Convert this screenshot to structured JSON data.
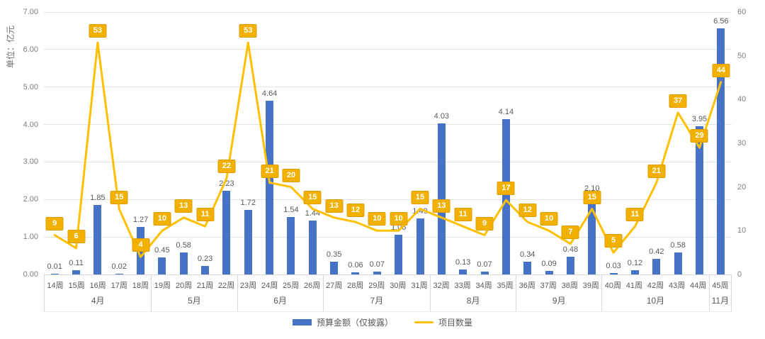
{
  "chart_data": {
    "type": "bar+line",
    "title": "",
    "categories": [
      "14周",
      "15周",
      "16周",
      "17周",
      "18周",
      "19周",
      "20周",
      "21周",
      "22周",
      "23周",
      "24周",
      "25周",
      "26周",
      "27周",
      "28周",
      "29周",
      "30周",
      "31周",
      "32周",
      "33周",
      "34周",
      "35周",
      "36周",
      "37周",
      "38周",
      "39周",
      "40周",
      "41周",
      "42周",
      "43周",
      "44周",
      "45周"
    ],
    "month_groups": [
      {
        "label": "4月",
        "weeks": 5
      },
      {
        "label": "5月",
        "weeks": 4
      },
      {
        "label": "6月",
        "weeks": 4
      },
      {
        "label": "7月",
        "weeks": 5
      },
      {
        "label": "8月",
        "weeks": 4
      },
      {
        "label": "9月",
        "weeks": 4
      },
      {
        "label": "10月",
        "weeks": 5
      },
      {
        "label": "11月",
        "weeks": 1
      }
    ],
    "series": [
      {
        "name": "预算金额（仅披露）",
        "type": "bar",
        "axis": "left",
        "color": "#4673c8",
        "values": [
          0.01,
          0.11,
          1.85,
          0.02,
          1.27,
          0.45,
          0.58,
          0.23,
          2.23,
          1.72,
          4.64,
          1.54,
          1.44,
          0.35,
          0.06,
          0.07,
          1.06,
          1.49,
          4.03,
          0.13,
          0.07,
          4.14,
          0.34,
          0.09,
          0.48,
          2.1,
          0.03,
          0.12,
          0.42,
          0.58,
          3.95,
          6.56
        ]
      },
      {
        "name": "项目数量",
        "type": "line",
        "axis": "right",
        "color": "#ffc000",
        "label_box_color": "#f2b101",
        "label_box_border": "#dda000",
        "values": [
          9,
          6,
          53,
          15,
          4,
          10,
          13,
          11,
          22,
          53,
          21,
          20,
          15,
          13,
          12,
          10,
          10,
          15,
          13,
          11,
          9,
          17,
          12,
          10,
          7,
          15,
          5,
          11,
          21,
          37,
          29,
          44
        ]
      }
    ],
    "left_axis": {
      "title": "单位：亿元",
      "min": 0,
      "max": 7,
      "ticks": [
        "0.00",
        "1.00",
        "2.00",
        "3.00",
        "4.00",
        "5.00",
        "6.00",
        "7.00"
      ]
    },
    "right_axis": {
      "min": 0,
      "max": 60,
      "ticks": [
        "0",
        "10",
        "20",
        "30",
        "40",
        "50",
        "60"
      ]
    },
    "grid": true,
    "legend_position": "bottom",
    "background": "#ffffff"
  }
}
